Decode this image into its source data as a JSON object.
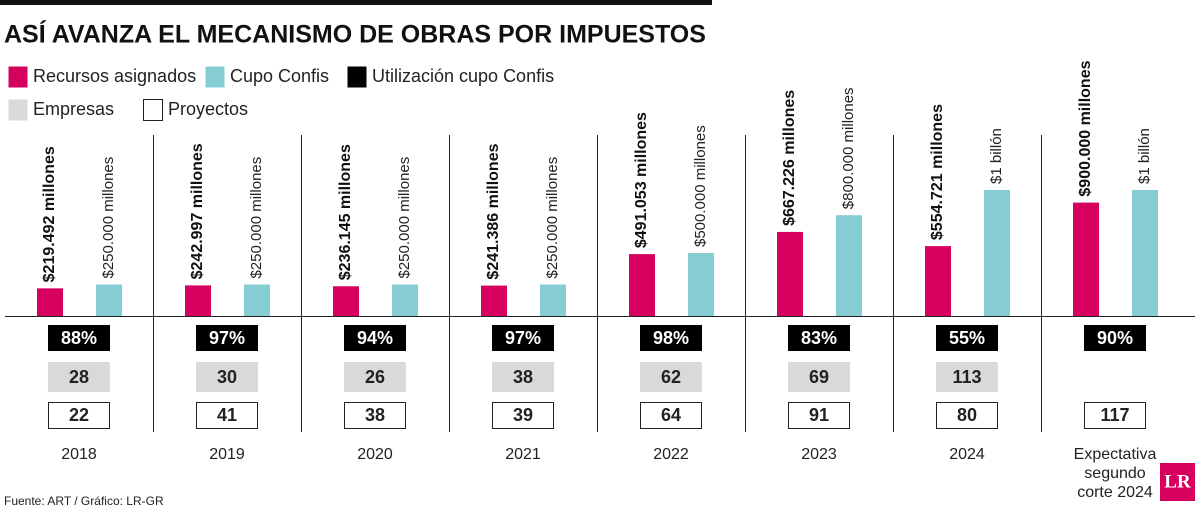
{
  "chart_data": {
    "type": "bar",
    "title": "ASÍ AVANZA EL MECANISMO DE OBRAS POR IMPUESTOS",
    "categories": [
      "2018",
      "2019",
      "2020",
      "2021",
      "2022",
      "2023",
      "2024",
      "Expectativa segundo corte 2024"
    ],
    "series": [
      {
        "name": "Recursos asignados",
        "color": "#d6005f",
        "values": [
          219492,
          242997,
          236145,
          241386,
          491053,
          667226,
          554721,
          900000
        ],
        "value_labels": [
          "$219.492 millones",
          "$242.997 millones",
          "$236.145 millones",
          "$241.386 millones",
          "$491.053 millones",
          "$667.226 millones",
          "$554.721 millones",
          "$900.000 millones"
        ]
      },
      {
        "name": "Cupo Confis",
        "color": "#86ccd3",
        "values": [
          250000,
          250000,
          250000,
          250000,
          500000,
          800000,
          1000000,
          1000000
        ],
        "value_labels": [
          "$250.000 millones",
          "$250.000 millones",
          "$250.000 millones",
          "$250.000 millones",
          "$500.000 millones",
          "$800.000 millones",
          "$1 billón",
          "$1 billón"
        ]
      }
    ],
    "rows": [
      {
        "name": "Utilización cupo Confis",
        "color": "#000000",
        "values": [
          88,
          97,
          94,
          97,
          98,
          83,
          55,
          90
        ],
        "value_labels": [
          "88%",
          "97%",
          "94%",
          "97%",
          "98%",
          "83%",
          "55%",
          "90%"
        ]
      },
      {
        "name": "Empresas",
        "color": "#d9d9d9",
        "values": [
          28,
          30,
          26,
          38,
          62,
          69,
          113,
          null
        ]
      },
      {
        "name": "Proyectos",
        "color": "#ffffff",
        "values": [
          22,
          41,
          38,
          39,
          64,
          91,
          80,
          117
        ]
      }
    ],
    "source": "Fuente: ART / Gráfico: LR-GR",
    "logo": "LR"
  }
}
